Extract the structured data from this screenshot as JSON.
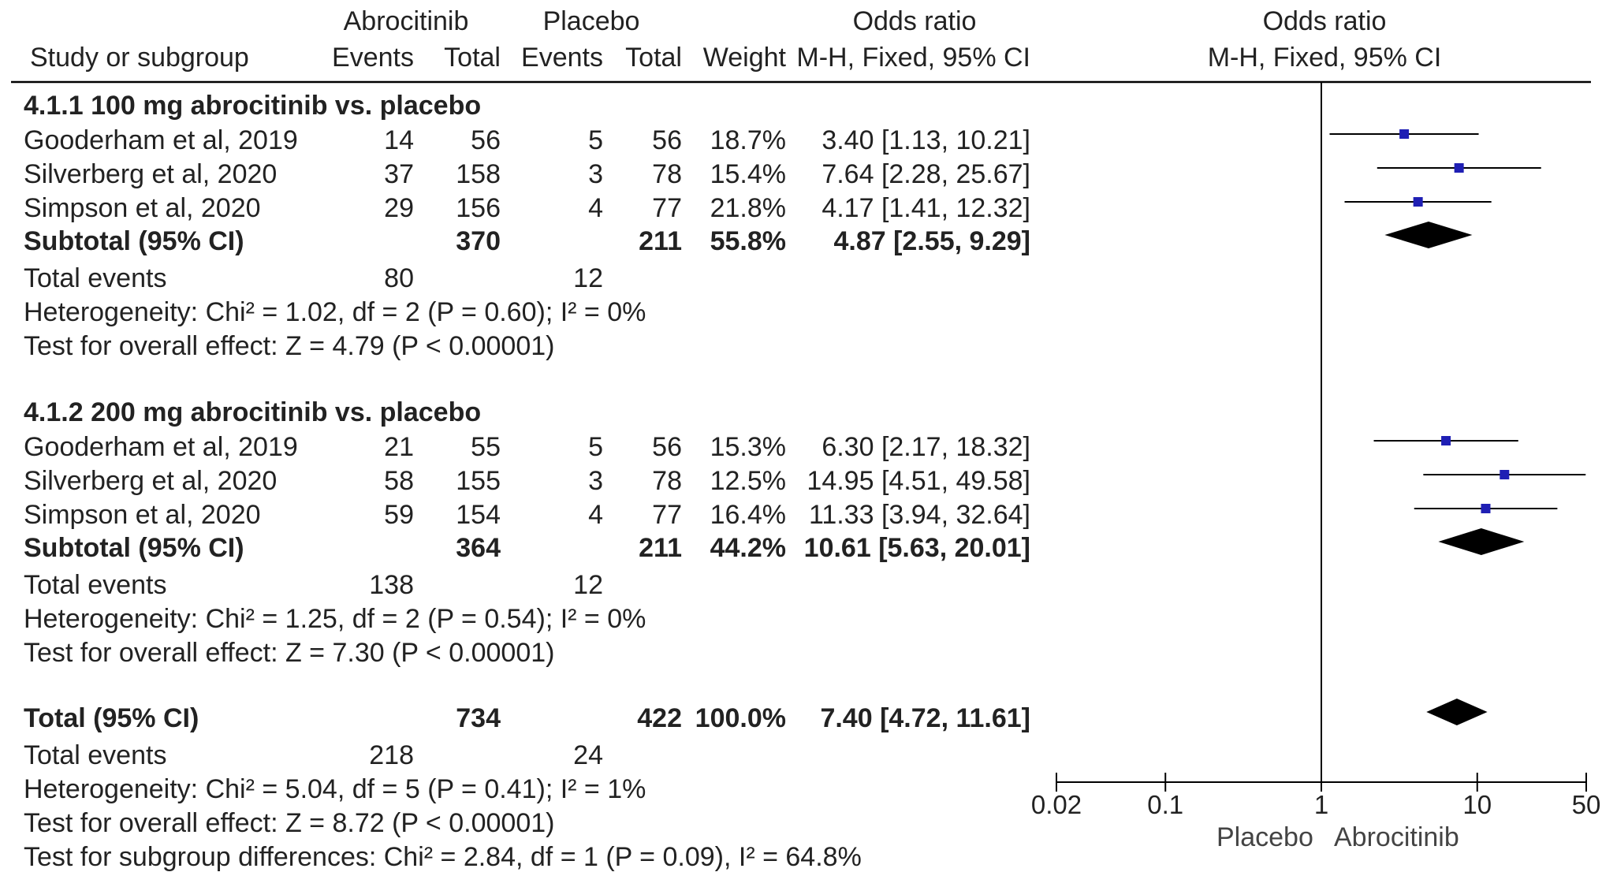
{
  "header": {
    "group_abro": "Abrocitinib",
    "group_plac": "Placebo",
    "or_left": "Odds ratio",
    "or_right": "Odds ratio",
    "study": "Study or subgroup",
    "events1": "Events",
    "total1": "Total",
    "events2": "Events",
    "total2": "Total",
    "weight": "Weight",
    "mh_left": "M-H, Fixed, 95% CI",
    "mh_right": "M-H, Fixed, 95% CI"
  },
  "subgroups": [
    {
      "title": "4.1.1 100 mg abrocitinib vs. placebo",
      "rows": [
        {
          "study": "Gooderham et al, 2019",
          "e1": "14",
          "t1": "56",
          "e2": "5",
          "t2": "56",
          "weight": "18.7%",
          "ci": "3.40 [1.13, 10.21]"
        },
        {
          "study": "Silverberg et al, 2020",
          "e1": "37",
          "t1": "158",
          "e2": "3",
          "t2": "78",
          "weight": "15.4%",
          "ci": "7.64 [2.28, 25.67]"
        },
        {
          "study": "Simpson et al, 2020",
          "e1": "29",
          "t1": "156",
          "e2": "4",
          "t2": "77",
          "weight": "21.8%",
          "ci": "4.17 [1.41, 12.32]"
        }
      ],
      "subtotal": {
        "label": "Subtotal (95% CI)",
        "t1": "370",
        "t2": "211",
        "weight": "55.8%",
        "ci": "4.87 [2.55, 9.29]"
      },
      "total_events": {
        "label": "Total events",
        "e1": "80",
        "e2": "12"
      },
      "heterogeneity": "Heterogeneity: Chi² = 1.02, df = 2 (P = 0.60); I² = 0%",
      "overall": "Test for overall effect: Z = 4.79 (P < 0.00001)"
    },
    {
      "title": "4.1.2 200 mg abrocitinib vs. placebo",
      "rows": [
        {
          "study": "Gooderham et al, 2019",
          "e1": "21",
          "t1": "55",
          "e2": "5",
          "t2": "56",
          "weight": "15.3%",
          "ci": "6.30 [2.17, 18.32]"
        },
        {
          "study": "Silverberg et al, 2020",
          "e1": "58",
          "t1": "155",
          "e2": "3",
          "t2": "78",
          "weight": "12.5%",
          "ci": "14.95 [4.51, 49.58]"
        },
        {
          "study": "Simpson et al, 2020",
          "e1": "59",
          "t1": "154",
          "e2": "4",
          "t2": "77",
          "weight": "16.4%",
          "ci": "11.33 [3.94, 32.64]"
        }
      ],
      "subtotal": {
        "label": "Subtotal (95% CI)",
        "t1": "364",
        "t2": "211",
        "weight": "44.2%",
        "ci": "10.61 [5.63, 20.01]"
      },
      "total_events": {
        "label": "Total events",
        "e1": "138",
        "e2": "12"
      },
      "heterogeneity": "Heterogeneity: Chi² = 1.25, df = 2 (P = 0.54); I² = 0%",
      "overall": "Test for overall effect: Z = 7.30 (P < 0.00001)"
    }
  ],
  "total": {
    "label": "Total (95% CI)",
    "t1": "734",
    "t2": "422",
    "weight": "100.0%",
    "ci": "7.40 [4.72, 11.61]",
    "events_label": "Total events",
    "e1": "218",
    "e2": "24",
    "heterogeneity": "Heterogeneity: Chi² = 5.04, df = 5 (P = 0.41); I² = 1%",
    "overall": "Test for overall effect: Z = 8.72 (P < 0.00001)",
    "subgroup_diff": "Test for subgroup differences: Chi² = 2.84, df = 1 (P = 0.09), I² = 64.8%"
  },
  "axis": {
    "favours_left": "Placebo",
    "favours_right": "Abrocitinib"
  },
  "chart_data": {
    "type": "forest",
    "scale": "log",
    "xlim": [
      0.02,
      50
    ],
    "reference_line": 1,
    "ticks": [
      0.02,
      0.1,
      1,
      10,
      50
    ],
    "tick_labels": [
      "0.02",
      "0.1",
      "1",
      "10",
      "50"
    ],
    "colors": {
      "study_marker": "#1f1fb4",
      "pooled_diamond": "#000000",
      "line": "#000000"
    },
    "studies": [
      {
        "name": "Gooderham et al, 2019",
        "subgroup": "4.1.1 100 mg abrocitinib vs. placebo",
        "or": 3.4,
        "lo": 1.13,
        "hi": 10.21
      },
      {
        "name": "Silverberg et al, 2020",
        "subgroup": "4.1.1 100 mg abrocitinib vs. placebo",
        "or": 7.64,
        "lo": 2.28,
        "hi": 25.67
      },
      {
        "name": "Simpson et al, 2020",
        "subgroup": "4.1.1 100 mg abrocitinib vs. placebo",
        "or": 4.17,
        "lo": 1.41,
        "hi": 12.32
      },
      {
        "name": "Gooderham et al, 2019",
        "subgroup": "4.1.2 200 mg abrocitinib vs. placebo",
        "or": 6.3,
        "lo": 2.17,
        "hi": 18.32
      },
      {
        "name": "Silverberg et al, 2020",
        "subgroup": "4.1.2 200 mg abrocitinib vs. placebo",
        "or": 14.95,
        "lo": 4.51,
        "hi": 49.58
      },
      {
        "name": "Simpson et al, 2020",
        "subgroup": "4.1.2 200 mg abrocitinib vs. placebo",
        "or": 11.33,
        "lo": 3.94,
        "hi": 32.64
      }
    ],
    "pooled": [
      {
        "name": "Subtotal (95% CI)",
        "subgroup": "4.1.1 100 mg abrocitinib vs. placebo",
        "or": 4.87,
        "lo": 2.55,
        "hi": 9.29
      },
      {
        "name": "Subtotal (95% CI)",
        "subgroup": "4.1.2 200 mg abrocitinib vs. placebo",
        "or": 10.61,
        "lo": 5.63,
        "hi": 20.01
      },
      {
        "name": "Total (95% CI)",
        "subgroup": "",
        "or": 7.4,
        "lo": 4.72,
        "hi": 11.61
      }
    ]
  }
}
